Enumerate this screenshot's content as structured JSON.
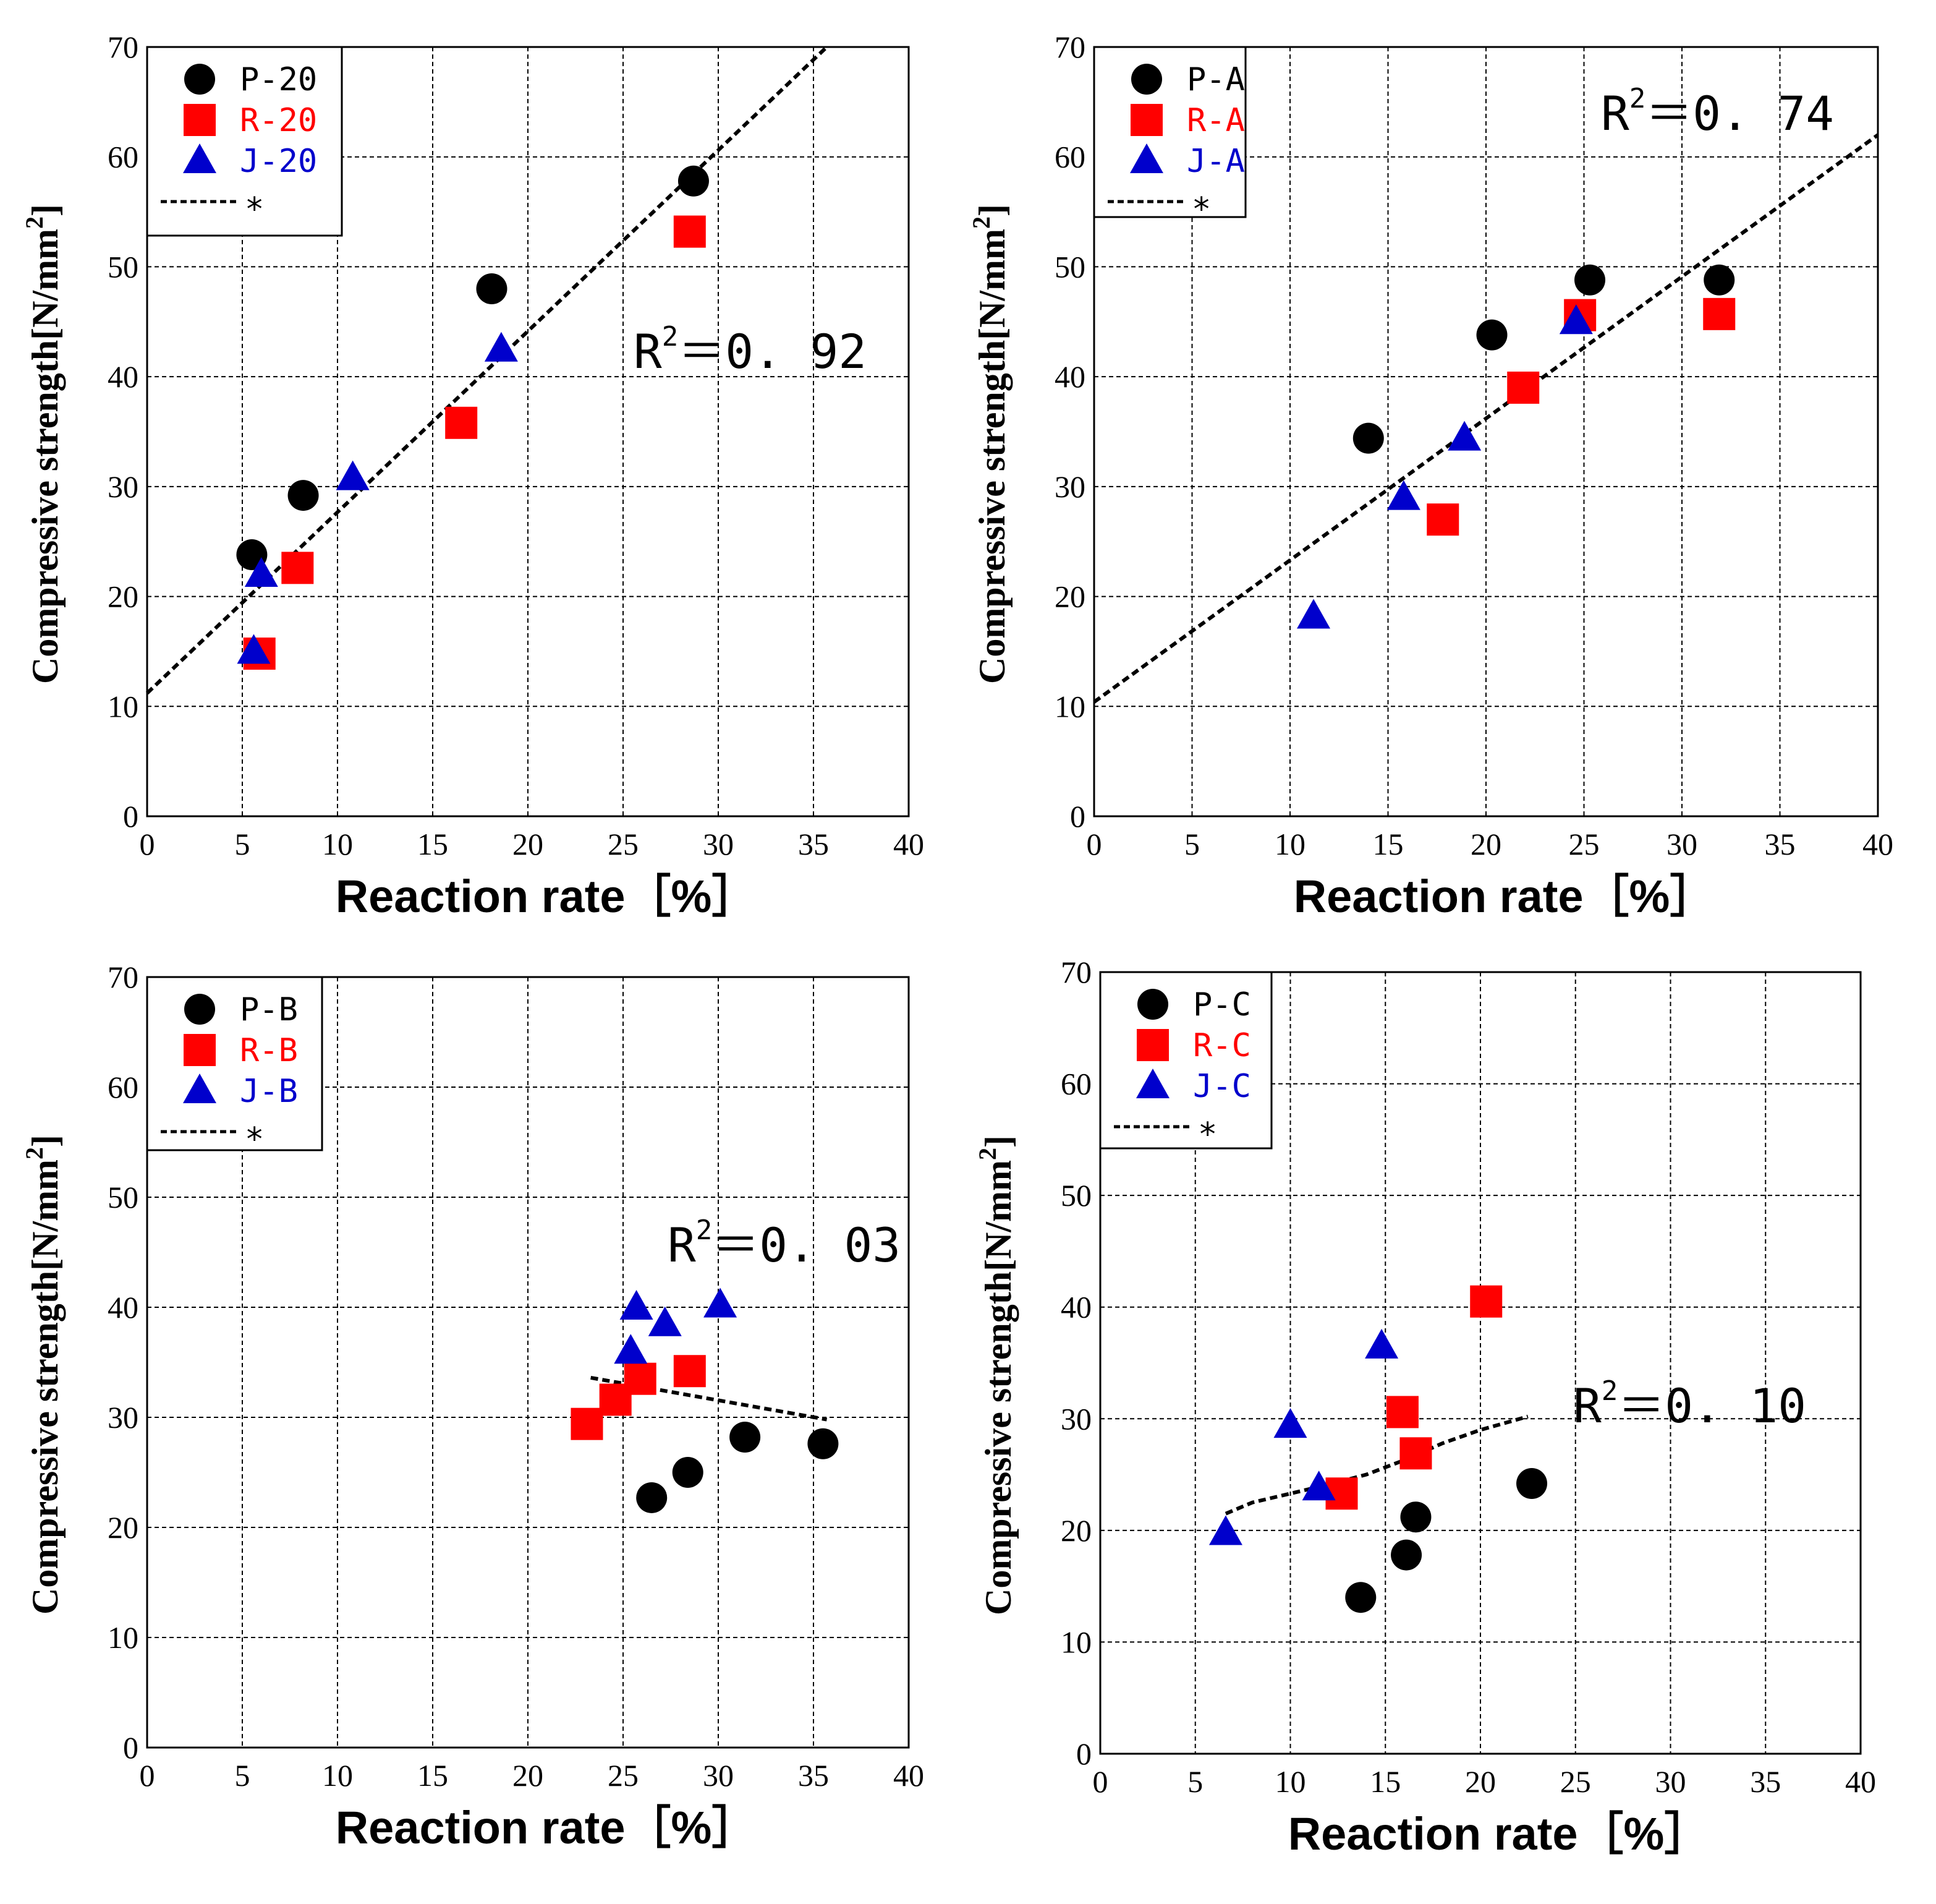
{
  "colors": {
    "P": "#000000",
    "R": "#ff0000",
    "J": "#0000cc",
    "fit": "#000000"
  },
  "chart_data": [
    {
      "type": "scatter",
      "xlabel": "Reaction rate［%］",
      "ylabel": "Compressive strength[N/mm²]",
      "ylabel_main": "Compressive strength[N/mm",
      "ylabel_sup": "2",
      "ylabel_close": "]",
      "xlim": [
        0,
        40
      ],
      "ylim": [
        0,
        70
      ],
      "grid": true,
      "xticks": [
        "0",
        "5",
        "10",
        "15",
        "20",
        "25",
        "30",
        "35",
        "40"
      ],
      "yticks": [
        "0",
        "10",
        "20",
        "30",
        "40",
        "50",
        "60",
        "70"
      ],
      "legend": [
        "P-20",
        "R-20",
        "J-20",
        "*"
      ],
      "legend_position": "top-left",
      "r2": {
        "label": "R",
        "sup": "2",
        "value": "＝0. 92"
      },
      "series": [
        {
          "name": "P-20",
          "marker": "circle",
          "x": [
            5.5,
            8.2,
            18.1,
            28.7
          ],
          "y": [
            23.8,
            29.2,
            48.0,
            57.8
          ]
        },
        {
          "name": "R-20",
          "marker": "square",
          "x": [
            5.9,
            7.9,
            16.5,
            28.5
          ],
          "y": [
            14.8,
            22.6,
            35.8,
            53.2
          ]
        },
        {
          "name": "J-20",
          "marker": "triangle",
          "x": [
            5.6,
            6.0,
            10.8,
            18.6
          ],
          "y": [
            15.0,
            22.0,
            30.8,
            42.5
          ]
        }
      ],
      "fit": {
        "x": [
          0,
          35.7
        ],
        "y": [
          11.2,
          70
        ]
      }
    },
    {
      "type": "scatter",
      "xlabel": "Reaction rate［%］",
      "ylabel": "Compressive strength[N/mm²]",
      "ylabel_main": "Compressive strength[N/mm",
      "ylabel_sup": "2",
      "ylabel_close": "]",
      "xlim": [
        0,
        40
      ],
      "ylim": [
        0,
        70
      ],
      "grid": true,
      "xticks": [
        "0",
        "5",
        "10",
        "15",
        "20",
        "25",
        "30",
        "35",
        "40"
      ],
      "yticks": [
        "0",
        "10",
        "20",
        "30",
        "40",
        "50",
        "60",
        "70"
      ],
      "legend": [
        "P-A",
        "R-A",
        "J-A",
        "*"
      ],
      "legend_position": "top-left",
      "r2": {
        "label": "R",
        "sup": "2",
        "value": "＝0. 74"
      },
      "series": [
        {
          "name": "P-A",
          "marker": "circle",
          "x": [
            14.0,
            20.3,
            25.3,
            31.9
          ],
          "y": [
            34.4,
            43.8,
            48.8,
            48.8
          ]
        },
        {
          "name": "R-A",
          "marker": "square",
          "x": [
            17.8,
            21.9,
            24.8,
            31.9
          ],
          "y": [
            27.0,
            39.0,
            45.6,
            45.7
          ]
        },
        {
          "name": "J-A",
          "marker": "triangle",
          "x": [
            11.2,
            15.8,
            18.9,
            24.6
          ],
          "y": [
            18.2,
            29.0,
            34.4,
            45.0
          ]
        }
      ],
      "fit": {
        "x": [
          0,
          40
        ],
        "y": [
          10.4,
          62.0
        ]
      }
    },
    {
      "type": "scatter",
      "xlabel": "Reaction rate［%］",
      "ylabel": "Compressive strength[N/mm²]",
      "ylabel_main": "Compressive strength[N/mm",
      "ylabel_sup": "2",
      "ylabel_close": "]",
      "xlim": [
        0,
        40
      ],
      "ylim": [
        0,
        70
      ],
      "grid": true,
      "xticks": [
        "0",
        "5",
        "10",
        "15",
        "20",
        "25",
        "30",
        "35",
        "40"
      ],
      "yticks": [
        "0",
        "10",
        "20",
        "30",
        "40",
        "50",
        "60",
        "70"
      ],
      "legend": [
        "P-B",
        "R-B",
        "J-B",
        "*"
      ],
      "legend_position": "top-left",
      "r2": {
        "label": "R",
        "sup": "2",
        "value": "＝0. 03"
      },
      "series": [
        {
          "name": "P-B",
          "marker": "circle",
          "x": [
            26.5,
            28.4,
            31.4,
            35.5
          ],
          "y": [
            22.7,
            25.0,
            28.2,
            27.6
          ]
        },
        {
          "name": "R-B",
          "marker": "square",
          "x": [
            23.1,
            24.6,
            25.9,
            28.5
          ],
          "y": [
            29.4,
            31.6,
            33.5,
            34.2
          ]
        },
        {
          "name": "J-B",
          "marker": "triangle",
          "x": [
            25.4,
            25.7,
            27.2,
            30.1
          ],
          "y": [
            36.0,
            40.0,
            38.5,
            40.2
          ]
        }
      ],
      "fit": {
        "x": [
          23.3,
          35.7
        ],
        "y": [
          33.6,
          29.8
        ]
      }
    },
    {
      "type": "scatter",
      "xlabel": "Reaction rate［%］",
      "ylabel": "Compressive strength[N/mm²]",
      "ylabel_main": "Compressive strength[N/mm",
      "ylabel_sup": "2",
      "ylabel_close": "]",
      "xlim": [
        0,
        40
      ],
      "ylim": [
        0,
        70
      ],
      "grid": true,
      "xticks": [
        "0",
        "5",
        "10",
        "15",
        "20",
        "25",
        "30",
        "35",
        "40"
      ],
      "yticks": [
        "0",
        "10",
        "20",
        "30",
        "40",
        "50",
        "60",
        "70"
      ],
      "legend": [
        "P-C",
        "R-C",
        "J-C",
        "*"
      ],
      "legend_position": "top-left",
      "r2": {
        "label": "R",
        "sup": "2",
        "value": "＝0. 10"
      },
      "series": [
        {
          "name": "P-C",
          "marker": "circle",
          "x": [
            13.7,
            16.1,
            16.6,
            22.7
          ],
          "y": [
            14.0,
            17.8,
            21.2,
            24.2
          ]
        },
        {
          "name": "R-C",
          "marker": "square",
          "x": [
            12.7,
            15.9,
            16.6,
            20.3
          ],
          "y": [
            23.3,
            30.6,
            26.9,
            40.5
          ]
        },
        {
          "name": "J-C",
          "marker": "triangle",
          "x": [
            6.6,
            10.0,
            11.5,
            14.8
          ],
          "y": [
            19.8,
            29.4,
            23.8,
            36.5
          ]
        }
      ],
      "fit": {
        "x": [
          6.6,
          8.0,
          10.0,
          12.0,
          14.0,
          16.0,
          18.0,
          20.0,
          22.5
        ],
        "y": [
          21.5,
          22.5,
          23.3,
          24.1,
          25.0,
          26.3,
          27.8,
          29.0,
          30.2
        ]
      }
    }
  ]
}
